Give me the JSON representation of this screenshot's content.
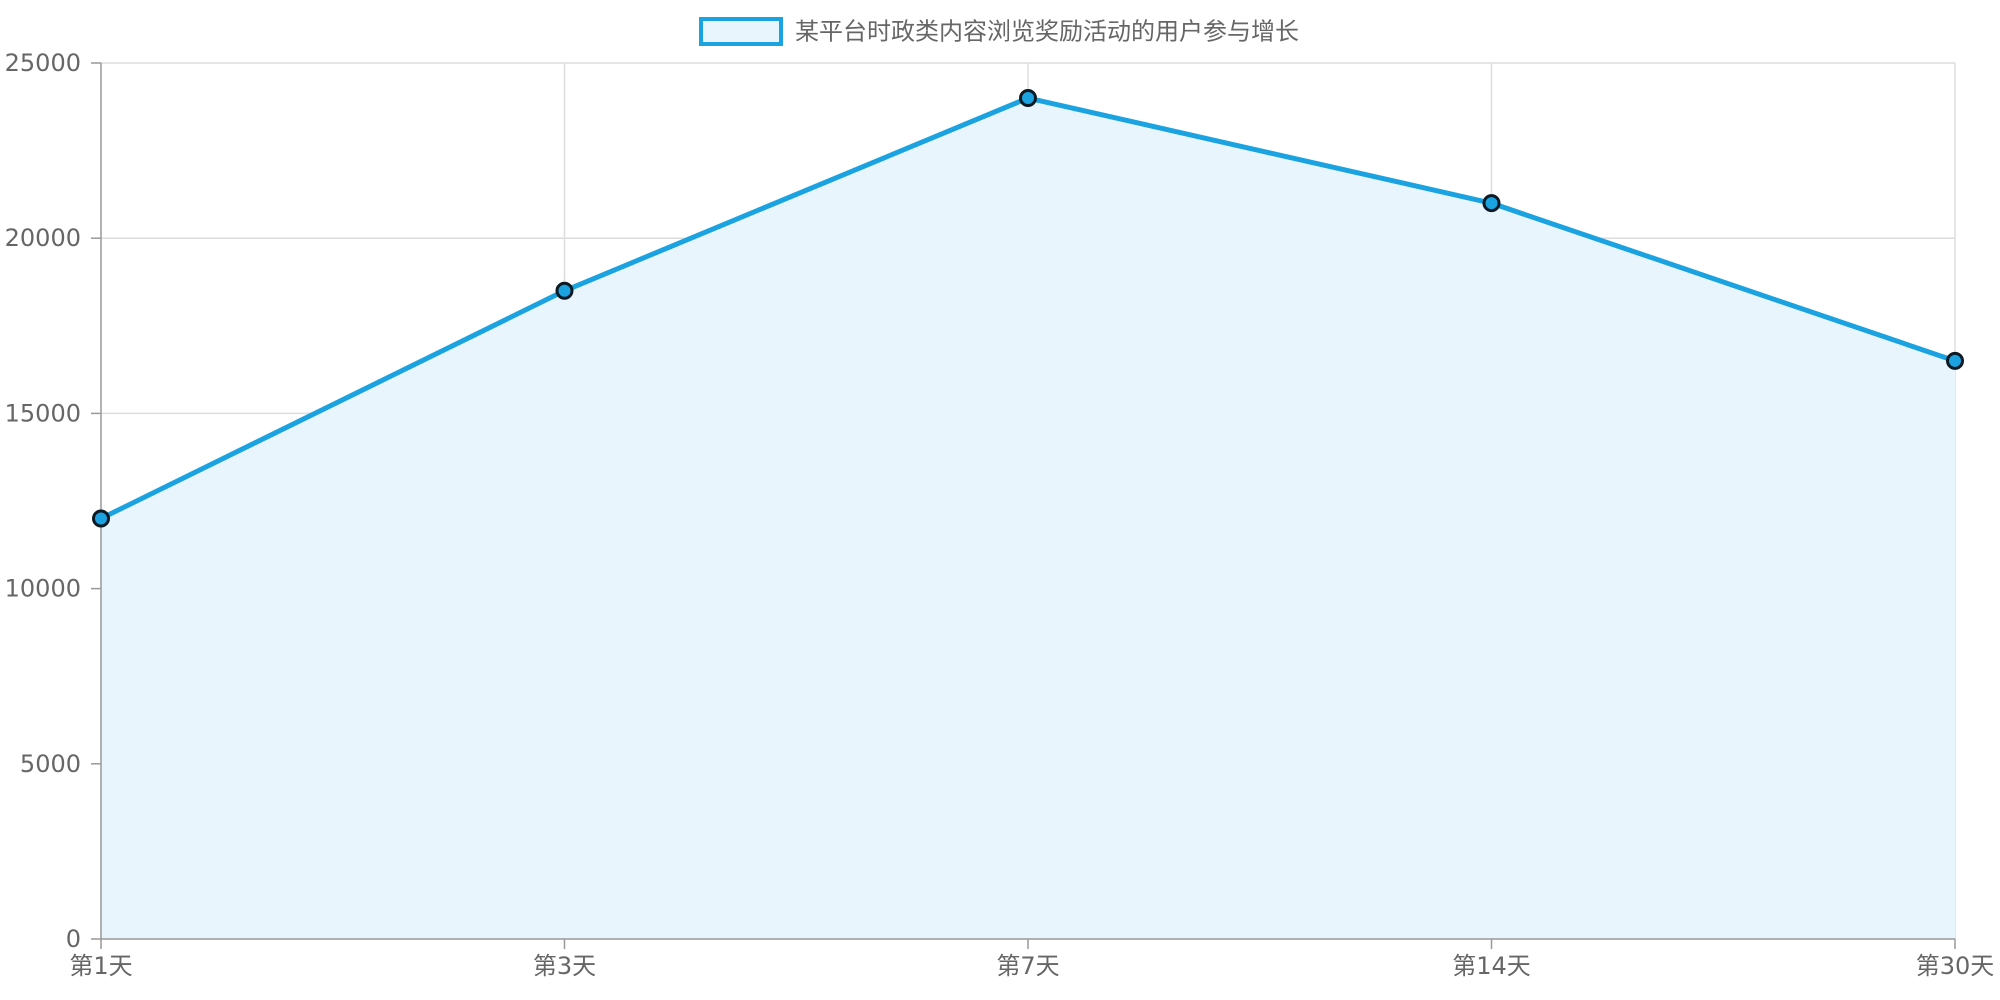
{
  "chart_data": {
    "type": "area",
    "title": "",
    "xlabel": "",
    "ylabel": "",
    "categories": [
      "第1天",
      "第3天",
      "第7天",
      "第14天",
      "第30天"
    ],
    "series": [
      {
        "name": "某平台时政类内容浏览奖励活动的用户参与增长",
        "values": [
          12000,
          18500,
          24000,
          21000,
          16500
        ]
      }
    ],
    "ylim": [
      0,
      25000
    ],
    "yticks": [
      0,
      5000,
      10000,
      15000,
      20000,
      25000
    ],
    "grid": true,
    "legend_position": "top-center",
    "colors": {
      "line": "#1aa3e0",
      "fill": "#e9f5fc",
      "point_fill": "#1aa3e0",
      "point_stroke": "#0d1a24",
      "grid": "#dddddd",
      "axis": "#999999",
      "text": "#666666"
    }
  }
}
